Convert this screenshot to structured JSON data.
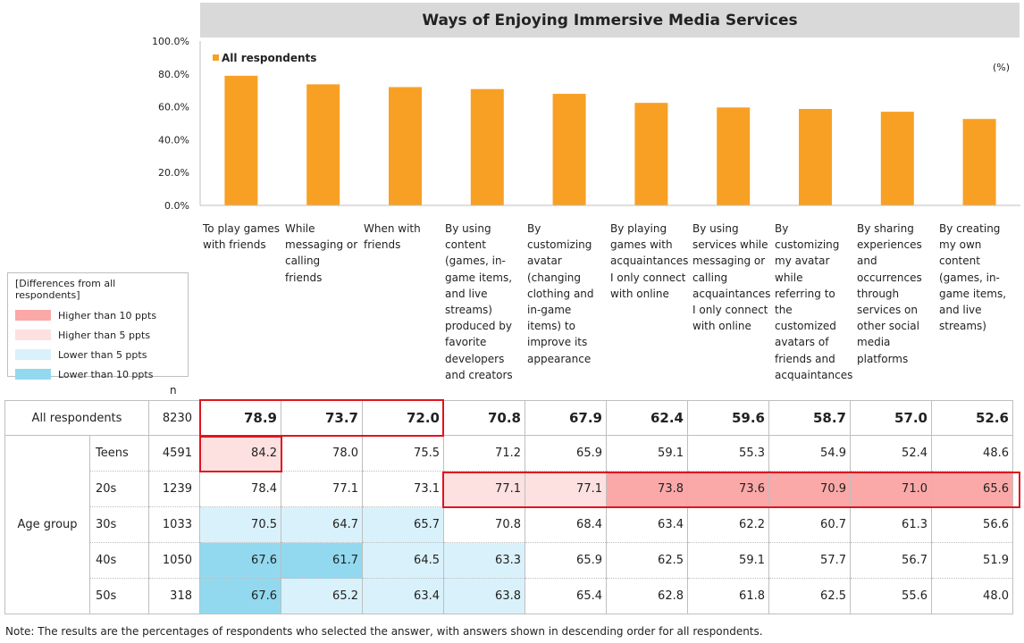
{
  "chart_data": {
    "type": "bar",
    "title": "Ways of Enjoying Immersive Media Services",
    "unit_label": "(%)",
    "ylim": [
      0,
      100
    ],
    "yticks": [
      "100.0%",
      "80.0%",
      "60.0%",
      "40.0%",
      "20.0%",
      "0.0%"
    ],
    "ytick_values": [
      100,
      80,
      60,
      40,
      20,
      0
    ],
    "categories": [
      "To play games with friends",
      "While messaging or calling friends",
      "When with friends",
      "By using content (games, in-game items, and live streams) produced by favorite developers and creators",
      "By customizing avatar (changing clothing and in-game items) to improve its appearance",
      "By playing games with acquaintances I only connect with online",
      "By using services while messaging or calling acquaintances I only connect with online",
      "By customizing my avatar while referring to the customized avatars of friends and acquaintances",
      "By sharing experiences and occurrences through services on other social media platforms",
      "By creating my own content (games, in-game items, and live streams)"
    ],
    "series": [
      {
        "name": "All respondents",
        "color": "#f8a024",
        "values": [
          78.9,
          73.7,
          72.0,
          70.8,
          67.9,
          62.4,
          59.6,
          58.7,
          57.0,
          52.6
        ]
      }
    ]
  },
  "legend": {
    "title": "[Differences from all respondents]",
    "items": [
      {
        "label": "Higher than 10 ppts",
        "color": "#faa8a8"
      },
      {
        "label": "Higher than 5 ppts",
        "color": "#fde0e0"
      },
      {
        "label": "Lower than 5 ppts",
        "color": "#d9f1fa"
      },
      {
        "label": "Lower than 10 ppts",
        "color": "#92d9ef"
      }
    ]
  },
  "table": {
    "n_header": "n",
    "group_label": "Age group",
    "all_row": {
      "label": "All respondents",
      "n": "8230",
      "values": [
        "78.9",
        "73.7",
        "72.0",
        "70.8",
        "67.9",
        "62.4",
        "59.6",
        "58.7",
        "57.0",
        "52.6"
      ]
    },
    "rows": [
      {
        "label": "Teens",
        "n": "4591",
        "values": [
          "84.2",
          "78.0",
          "75.5",
          "71.2",
          "65.9",
          "59.1",
          "55.3",
          "54.9",
          "52.4",
          "48.6"
        ]
      },
      {
        "label": "20s",
        "n": "1239",
        "values": [
          "78.4",
          "77.1",
          "73.1",
          "77.1",
          "77.1",
          "73.8",
          "73.6",
          "70.9",
          "71.0",
          "65.6"
        ]
      },
      {
        "label": "30s",
        "n": "1033",
        "values": [
          "70.5",
          "64.7",
          "65.7",
          "70.8",
          "68.4",
          "63.4",
          "62.2",
          "60.7",
          "61.3",
          "56.6"
        ]
      },
      {
        "label": "40s",
        "n": "1050",
        "values": [
          "67.6",
          "61.7",
          "64.5",
          "63.3",
          "65.9",
          "62.5",
          "59.1",
          "57.7",
          "56.7",
          "51.9"
        ]
      },
      {
        "label": "50s",
        "n": "318",
        "values": [
          "67.6",
          "65.2",
          "63.4",
          "63.8",
          "65.4",
          "62.8",
          "61.8",
          "62.5",
          "55.6",
          "48.0"
        ]
      }
    ]
  },
  "note": "Note: The results are the percentages of respondents who selected the answer, with answers shown in descending order for all respondents."
}
